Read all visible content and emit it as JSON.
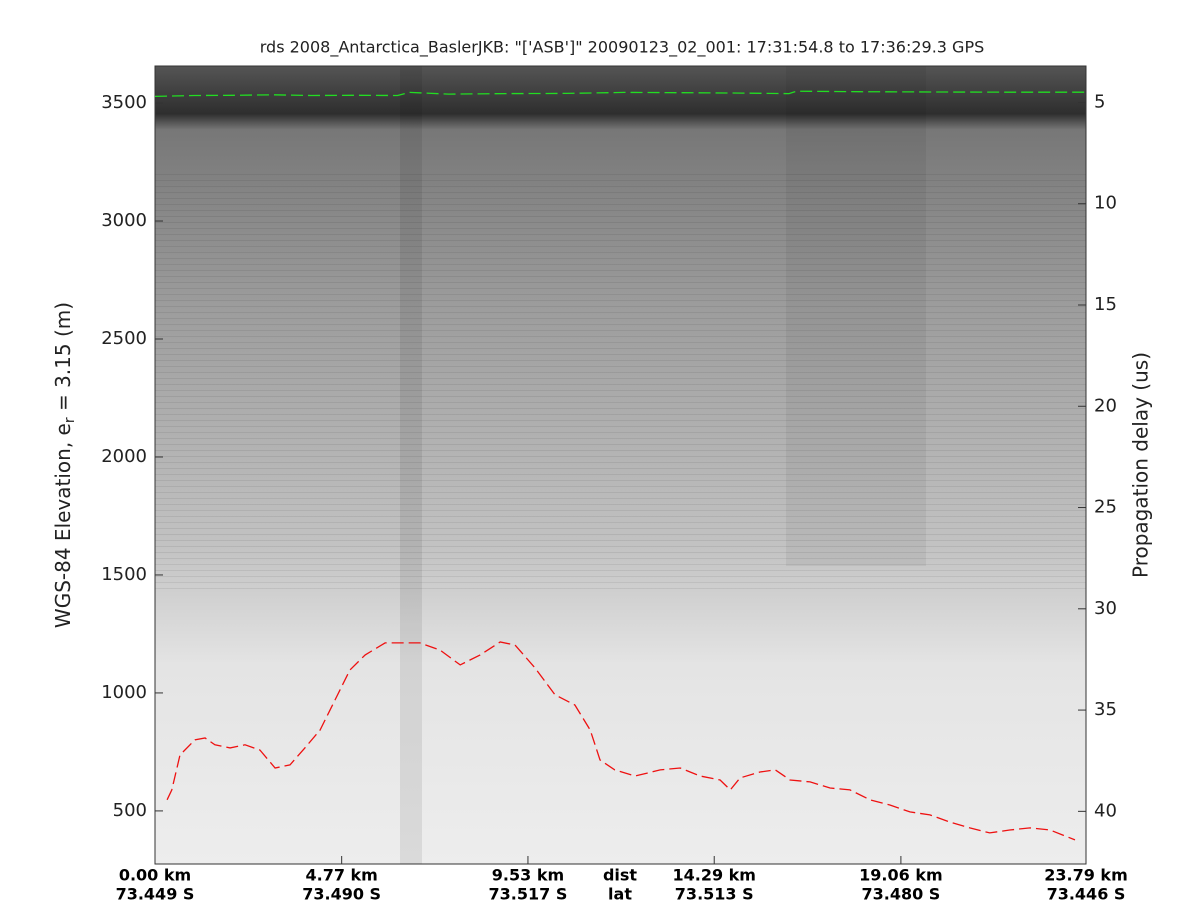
{
  "chart_data": {
    "type": "line",
    "title": "rds 2008_Antarctica_BaslerJKB: \"['ASB']\"  20090123_02_001: 17:31:54.8 to 17:36:29.3 GPS",
    "ylabel": {
      "prefix": "WGS-84 Elevation, e",
      "subscript": "r",
      "suffix": " = 3.15 (m)"
    },
    "y2label": "Propagation delay (us)",
    "xlim": [
      0,
      23.79
    ],
    "xticks": [
      {
        "value": 0,
        "label": "0.00 km"
      },
      {
        "value": 4.77,
        "label": "4.77 km"
      },
      {
        "value": 9.53,
        "label": "9.53 km"
      },
      {
        "value": 14.29,
        "label": "14.29 km"
      },
      {
        "value": 19.06,
        "label": "19.06 km"
      },
      {
        "value": 23.79,
        "label": "23.79 km"
      }
    ],
    "xtick_lat_labels": [
      "73.449 S",
      "73.490 S",
      "73.517 S",
      "73.513 S",
      "73.480 S",
      "73.446 S"
    ],
    "x_row_labels": [
      "dist",
      "lat"
    ],
    "ylim": [
      275,
      3657
    ],
    "yticks": [
      500,
      1000,
      1500,
      2000,
      2500,
      3000,
      3500
    ],
    "y2lim": [
      42.6,
      3.2
    ],
    "y2ticks": [
      5,
      10,
      15,
      20,
      25,
      30,
      35,
      40
    ],
    "series": [
      {
        "name": "surface",
        "color": "#22dd22",
        "x": [
          0,
          1,
          2,
          3,
          4,
          5,
          6.2,
          6.5,
          7.5,
          9,
          10.5,
          12,
          13.5,
          15,
          16.2,
          16.4,
          18,
          20,
          22,
          23.79
        ],
        "values": [
          3528,
          3532,
          3533,
          3535,
          3532,
          3533,
          3532,
          3545,
          3538,
          3540,
          3541,
          3545,
          3544,
          3542,
          3540,
          3550,
          3548,
          3547,
          3546,
          3546
        ]
      },
      {
        "name": "bed",
        "color": "#ee1111",
        "x": [
          0.31,
          0.43,
          0.64,
          1.02,
          1.28,
          1.53,
          1.92,
          2.3,
          2.68,
          3.07,
          3.45,
          3.83,
          4.22,
          4.6,
          4.98,
          5.37,
          5.88,
          6.39,
          6.77,
          7.28,
          7.8,
          8.31,
          8.82,
          9.2,
          9.71,
          10.22,
          10.73,
          11.12,
          11.37,
          11.75,
          12.27,
          12.91,
          13.42,
          13.93,
          14.44,
          14.7,
          14.95,
          15.46,
          15.85,
          16.23,
          16.74,
          17.25,
          17.76,
          18.27,
          18.78,
          19.29,
          19.8,
          20.31,
          20.82,
          21.33,
          21.84,
          22.36,
          22.87,
          23.51
        ],
        "values": [
          547,
          589,
          737,
          801,
          809,
          780,
          767,
          780,
          758,
          682,
          695,
          767,
          843,
          970,
          1097,
          1161,
          1212,
          1212,
          1212,
          1182,
          1119,
          1161,
          1216,
          1203,
          1106,
          992,
          949,
          843,
          716,
          674,
          648,
          674,
          682,
          648,
          631,
          589,
          640,
          665,
          674,
          631,
          623,
          597,
          589,
          547,
          525,
          496,
          483,
          453,
          428,
          407,
          419,
          428,
          419,
          377
        ]
      }
    ]
  }
}
